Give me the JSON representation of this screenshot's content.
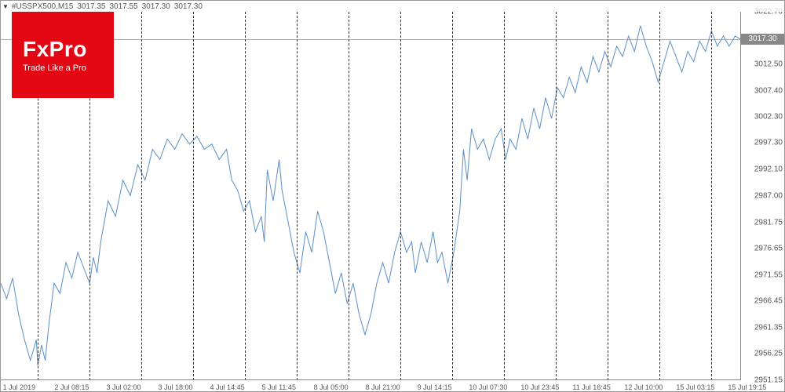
{
  "header": {
    "symbol": "#USSPX500,M15",
    "ohlc": [
      "3017.35",
      "3017.55",
      "3017.30",
      "3017.30"
    ]
  },
  "logo": {
    "name": "FxPro",
    "tagline": "Trade Like a Pro",
    "bg_color": "#e30613",
    "text_color": "#ffffff"
  },
  "chart": {
    "type": "line",
    "line_color": "#5a8fc7",
    "line_width": 1,
    "background_color": "#ffffff",
    "grid_color": "#333333",
    "axis_color": "#888888",
    "text_color": "#555555",
    "font_size": 10,
    "ylim": [
      2951.15,
      3022.7
    ],
    "y_ticks": [
      2951.15,
      2956.25,
      2961.35,
      2966.45,
      2971.55,
      2976.65,
      2981.75,
      2987.0,
      2992.1,
      2997.3,
      3002.3,
      3007.4,
      3012.5,
      3017.3,
      3022.7
    ],
    "y_tick_labels": [
      "2951.15",
      "2956.25",
      "2961.35",
      "2966.45",
      "2971.55",
      "2976.65",
      "2981.75",
      "2987.00",
      "2992.10",
      "2997.30",
      "3002.30",
      "3007.40",
      "3012.50",
      "3017.30",
      "3022.70"
    ],
    "current_price": 3017.3,
    "current_price_label": "3017.30",
    "current_price_box_bg": "#888888",
    "x_labels": [
      "1 Jul 2019",
      "2 Jul 08:15",
      "3 Jul 02:00",
      "3 Jul 18:00",
      "4 Jul 14:45",
      "5 Jul 11:45",
      "8 Jul 05:00",
      "8 Jul 21:00",
      "9 Jul 14:15",
      "10 Jul 07:30",
      "10 Jul 23:45",
      "11 Jul 16:45",
      "12 Jul 10:00",
      "15 Jul 03:15",
      "15 Jul 19:15"
    ],
    "x_positions_pct": [
      0.5,
      7.5,
      14.5,
      21.5,
      28.5,
      35.5,
      42.5,
      49.5,
      56.5,
      63.5,
      70.5,
      77.5,
      84.5,
      91.5,
      98.5
    ],
    "vlines_pct": [
      5,
      12,
      19,
      26,
      33,
      40,
      47,
      54,
      61,
      68,
      75,
      82,
      89,
      96
    ],
    "series": [
      [
        0.0,
        2970.0
      ],
      [
        0.008,
        2967.0
      ],
      [
        0.016,
        2971.0
      ],
      [
        0.024,
        2964.0
      ],
      [
        0.032,
        2959.0
      ],
      [
        0.04,
        2955.0
      ],
      [
        0.048,
        2959.0
      ],
      [
        0.05,
        2954.0
      ],
      [
        0.055,
        2958.0
      ],
      [
        0.06,
        2955.0
      ],
      [
        0.065,
        2962.0
      ],
      [
        0.072,
        2970.0
      ],
      [
        0.08,
        2968.0
      ],
      [
        0.088,
        2974.0
      ],
      [
        0.096,
        2971.0
      ],
      [
        0.104,
        2976.0
      ],
      [
        0.112,
        2973.0
      ],
      [
        0.12,
        2970.0
      ],
      [
        0.125,
        2975.0
      ],
      [
        0.13,
        2972.0
      ],
      [
        0.135,
        2978.0
      ],
      [
        0.145,
        2986.0
      ],
      [
        0.155,
        2983.0
      ],
      [
        0.165,
        2990.0
      ],
      [
        0.175,
        2987.0
      ],
      [
        0.185,
        2993.0
      ],
      [
        0.195,
        2990.0
      ],
      [
        0.205,
        2996.0
      ],
      [
        0.215,
        2994.0
      ],
      [
        0.225,
        2998.0
      ],
      [
        0.235,
        2996.0
      ],
      [
        0.245,
        2999.0
      ],
      [
        0.255,
        2997.0
      ],
      [
        0.265,
        2998.5
      ],
      [
        0.275,
        2996.0
      ],
      [
        0.285,
        2997.0
      ],
      [
        0.295,
        2994.0
      ],
      [
        0.305,
        2996.0
      ],
      [
        0.312,
        2990.0
      ],
      [
        0.32,
        2988.0
      ],
      [
        0.328,
        2984.0
      ],
      [
        0.336,
        2986.0
      ],
      [
        0.344,
        2980.0
      ],
      [
        0.352,
        2983.0
      ],
      [
        0.356,
        2978.0
      ],
      [
        0.36,
        2992.0
      ],
      [
        0.368,
        2986.0
      ],
      [
        0.376,
        2994.0
      ],
      [
        0.38,
        2988.0
      ],
      [
        0.388,
        2982.0
      ],
      [
        0.396,
        2976.0
      ],
      [
        0.404,
        2972.0
      ],
      [
        0.412,
        2980.0
      ],
      [
        0.42,
        2976.0
      ],
      [
        0.428,
        2984.0
      ],
      [
        0.436,
        2980.0
      ],
      [
        0.444,
        2974.0
      ],
      [
        0.452,
        2968.0
      ],
      [
        0.46,
        2972.0
      ],
      [
        0.468,
        2966.0
      ],
      [
        0.476,
        2970.0
      ],
      [
        0.484,
        2964.0
      ],
      [
        0.492,
        2960.0
      ],
      [
        0.5,
        2964.0
      ],
      [
        0.508,
        2970.0
      ],
      [
        0.516,
        2974.0
      ],
      [
        0.524,
        2970.0
      ],
      [
        0.532,
        2976.0
      ],
      [
        0.54,
        2980.0
      ],
      [
        0.548,
        2976.0
      ],
      [
        0.555,
        2978.0
      ],
      [
        0.56,
        2972.0
      ],
      [
        0.568,
        2978.0
      ],
      [
        0.576,
        2974.0
      ],
      [
        0.584,
        2980.0
      ],
      [
        0.59,
        2974.0
      ],
      [
        0.596,
        2976.0
      ],
      [
        0.604,
        2970.0
      ],
      [
        0.612,
        2976.0
      ],
      [
        0.62,
        2984.0
      ],
      [
        0.625,
        2996.0
      ],
      [
        0.63,
        2990.0
      ],
      [
        0.636,
        3000.0
      ],
      [
        0.644,
        2996.0
      ],
      [
        0.652,
        2998.0
      ],
      [
        0.66,
        2994.0
      ],
      [
        0.668,
        2998.0
      ],
      [
        0.676,
        3000.0
      ],
      [
        0.682,
        2994.0
      ],
      [
        0.688,
        2998.0
      ],
      [
        0.696,
        2996.0
      ],
      [
        0.704,
        3002.0
      ],
      [
        0.712,
        2998.0
      ],
      [
        0.72,
        3004.0
      ],
      [
        0.728,
        3000.0
      ],
      [
        0.736,
        3006.0
      ],
      [
        0.744,
        3002.0
      ],
      [
        0.752,
        3008.0
      ],
      [
        0.76,
        3006.0
      ],
      [
        0.768,
        3010.0
      ],
      [
        0.776,
        3007.0
      ],
      [
        0.784,
        3012.0
      ],
      [
        0.792,
        3009.0
      ],
      [
        0.8,
        3014.0
      ],
      [
        0.808,
        3011.0
      ],
      [
        0.816,
        3015.0
      ],
      [
        0.824,
        3012.0
      ],
      [
        0.832,
        3016.0
      ],
      [
        0.84,
        3014.0
      ],
      [
        0.848,
        3018.0
      ],
      [
        0.856,
        3015.0
      ],
      [
        0.864,
        3020.0
      ],
      [
        0.872,
        3016.0
      ],
      [
        0.88,
        3013.0
      ],
      [
        0.888,
        3009.0
      ],
      [
        0.896,
        3013.0
      ],
      [
        0.904,
        3017.0
      ],
      [
        0.912,
        3014.0
      ],
      [
        0.92,
        3011.0
      ],
      [
        0.928,
        3015.0
      ],
      [
        0.936,
        3013.0
      ],
      [
        0.944,
        3017.0
      ],
      [
        0.952,
        3015.0
      ],
      [
        0.96,
        3019.0
      ],
      [
        0.968,
        3016.0
      ],
      [
        0.976,
        3018.0
      ],
      [
        0.984,
        3016.0
      ],
      [
        0.992,
        3018.0
      ],
      [
        1.0,
        3017.3
      ]
    ]
  }
}
